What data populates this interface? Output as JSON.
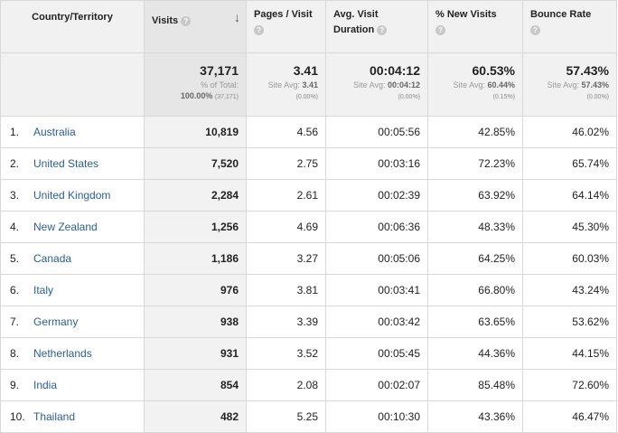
{
  "headers": {
    "country": "Country/Territory",
    "visits": "Visits",
    "pages": "Pages / Visit",
    "duration_line1": "Avg. Visit",
    "duration_line2": "Duration",
    "new": "% New Visits",
    "bounce": "Bounce Rate",
    "help": "?",
    "sort": "↓"
  },
  "totals": {
    "visits": "37,171",
    "visits_sub1": "% of Total:",
    "visits_sub2": "100.00%",
    "visits_sub3": "(37,171)",
    "pages": "3.41",
    "pages_sub1": "Site Avg:",
    "pages_sub2": "3.41",
    "pages_sub3": "(0.00%)",
    "duration": "00:04:12",
    "duration_sub1": "Site Avg:",
    "duration_sub2": "00:04:12",
    "duration_sub3": "(0.00%)",
    "new": "60.53%",
    "new_sub1": "Site Avg:",
    "new_sub2": "60.44%",
    "new_sub3": "(0.15%)",
    "bounce": "57.43%",
    "bounce_sub1": "Site Avg:",
    "bounce_sub2": "57.43%",
    "bounce_sub3": "(0.00%)"
  },
  "rows": [
    {
      "idx": "1.",
      "country": "Australia",
      "visits": "10,819",
      "pages": "4.56",
      "duration": "00:05:56",
      "new": "42.85%",
      "bounce": "46.02%"
    },
    {
      "idx": "2.",
      "country": "United States",
      "visits": "7,520",
      "pages": "2.75",
      "duration": "00:03:16",
      "new": "72.23%",
      "bounce": "65.74%"
    },
    {
      "idx": "3.",
      "country": "United Kingdom",
      "visits": "2,284",
      "pages": "2.61",
      "duration": "00:02:39",
      "new": "63.92%",
      "bounce": "64.14%"
    },
    {
      "idx": "4.",
      "country": "New Zealand",
      "visits": "1,256",
      "pages": "4.69",
      "duration": "00:06:36",
      "new": "48.33%",
      "bounce": "45.30%"
    },
    {
      "idx": "5.",
      "country": "Canada",
      "visits": "1,186",
      "pages": "3.27",
      "duration": "00:05:06",
      "new": "64.25%",
      "bounce": "60.03%"
    },
    {
      "idx": "6.",
      "country": "Italy",
      "visits": "976",
      "pages": "3.81",
      "duration": "00:03:41",
      "new": "66.80%",
      "bounce": "43.24%"
    },
    {
      "idx": "7.",
      "country": "Germany",
      "visits": "938",
      "pages": "3.39",
      "duration": "00:03:42",
      "new": "63.65%",
      "bounce": "53.62%"
    },
    {
      "idx": "8.",
      "country": "Netherlands",
      "visits": "931",
      "pages": "3.52",
      "duration": "00:05:45",
      "new": "44.36%",
      "bounce": "44.15%"
    },
    {
      "idx": "9.",
      "country": "India",
      "visits": "854",
      "pages": "2.08",
      "duration": "00:02:07",
      "new": "85.48%",
      "bounce": "72.60%"
    },
    {
      "idx": "10.",
      "country": "Thailand",
      "visits": "482",
      "pages": "5.25",
      "duration": "00:10:30",
      "new": "43.36%",
      "bounce": "46.47%"
    }
  ]
}
